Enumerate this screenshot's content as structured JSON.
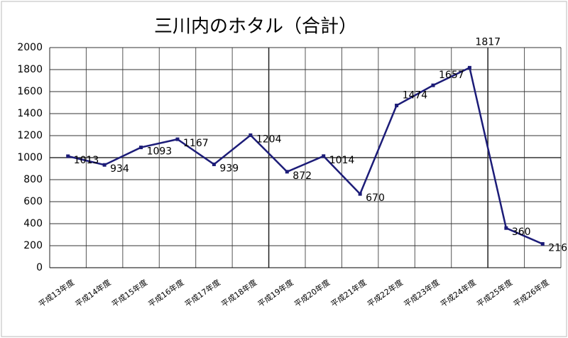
{
  "chart_data": {
    "type": "line",
    "title": "三川内のホタル（合計）",
    "categories": [
      "平成13年度",
      "平成14年度",
      "平成15年度",
      "平成16年度",
      "平成17年度",
      "平成18年度",
      "平成19年度",
      "平成20年度",
      "平成21年度",
      "平成22年度",
      "平成23年度",
      "平成24年度",
      "平成25年度",
      "平成26年度"
    ],
    "values": [
      1013,
      934,
      1093,
      1167,
      939,
      1204,
      872,
      1014,
      670,
      1474,
      1657,
      1817,
      360,
      216
    ],
    "color": "#1c1c78",
    "ylim": [
      0,
      2000
    ],
    "yticks": [
      0,
      200,
      400,
      600,
      800,
      1000,
      1200,
      1400,
      1600,
      1800,
      2000
    ],
    "grid": true
  }
}
